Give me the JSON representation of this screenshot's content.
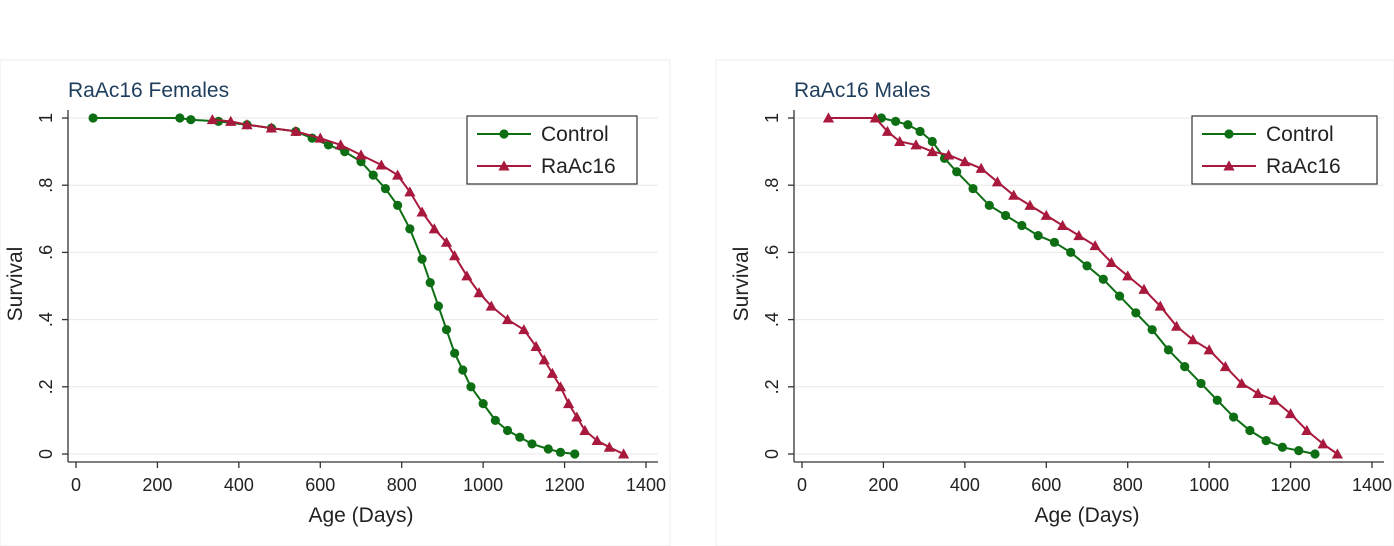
{
  "colors": {
    "control": "#0e6e14",
    "raac16": "#a8193d"
  },
  "chart_data": [
    {
      "type": "line",
      "title": "RaAc16 Females",
      "xlabel": "Age (Days)",
      "ylabel": "Survival",
      "xlim": [
        0,
        1400
      ],
      "ylim": [
        0,
        1
      ],
      "xticks": [
        0,
        200,
        400,
        600,
        800,
        1000,
        1200,
        1400
      ],
      "yticks": [
        0,
        0.2,
        0.4,
        0.6,
        0.8,
        1
      ],
      "ytick_labels": [
        "0",
        ".2",
        ".4",
        ".6",
        ".8",
        "1"
      ],
      "grid": true,
      "legend_position": "top-right",
      "series": [
        {
          "name": "Control",
          "marker": "circle",
          "x": [
            42,
            255,
            282,
            350,
            420,
            480,
            540,
            580,
            620,
            660,
            700,
            730,
            760,
            790,
            820,
            850,
            870,
            890,
            910,
            930,
            950,
            970,
            1000,
            1030,
            1060,
            1090,
            1120,
            1160,
            1190,
            1225
          ],
          "y": [
            1.0,
            1.0,
            0.995,
            0.99,
            0.98,
            0.97,
            0.96,
            0.94,
            0.92,
            0.9,
            0.87,
            0.83,
            0.79,
            0.74,
            0.67,
            0.58,
            0.51,
            0.44,
            0.37,
            0.3,
            0.25,
            0.2,
            0.15,
            0.1,
            0.07,
            0.05,
            0.03,
            0.015,
            0.005,
            0.0
          ]
        },
        {
          "name": "RaAc16",
          "marker": "triangle",
          "x": [
            335,
            380,
            420,
            480,
            540,
            600,
            650,
            700,
            750,
            790,
            820,
            850,
            880,
            910,
            930,
            960,
            990,
            1020,
            1060,
            1100,
            1130,
            1150,
            1170,
            1190,
            1210,
            1230,
            1250,
            1280,
            1310,
            1345
          ],
          "y": [
            0.995,
            0.99,
            0.98,
            0.97,
            0.96,
            0.94,
            0.92,
            0.89,
            0.86,
            0.83,
            0.78,
            0.72,
            0.67,
            0.63,
            0.59,
            0.53,
            0.48,
            0.44,
            0.4,
            0.37,
            0.32,
            0.28,
            0.24,
            0.2,
            0.15,
            0.11,
            0.07,
            0.04,
            0.02,
            0.0
          ]
        }
      ]
    },
    {
      "type": "line",
      "title": "RaAc16 Males",
      "xlabel": "Age (Days)",
      "ylabel": "Survival",
      "xlim": [
        0,
        1400
      ],
      "ylim": [
        0,
        1
      ],
      "xticks": [
        0,
        200,
        400,
        600,
        800,
        1000,
        1200,
        1400
      ],
      "yticks": [
        0,
        0.2,
        0.4,
        0.6,
        0.8,
        1
      ],
      "ytick_labels": [
        "0",
        ".2",
        ".4",
        ".6",
        ".8",
        "1"
      ],
      "grid": true,
      "legend_position": "top-right",
      "series": [
        {
          "name": "Control",
          "marker": "circle",
          "x": [
            195,
            230,
            260,
            290,
            320,
            350,
            380,
            420,
            460,
            500,
            540,
            580,
            620,
            660,
            700,
            740,
            780,
            820,
            860,
            900,
            940,
            980,
            1020,
            1060,
            1100,
            1140,
            1180,
            1220,
            1260
          ],
          "y": [
            1.0,
            0.99,
            0.98,
            0.96,
            0.93,
            0.88,
            0.84,
            0.79,
            0.74,
            0.71,
            0.68,
            0.65,
            0.63,
            0.6,
            0.56,
            0.52,
            0.47,
            0.42,
            0.37,
            0.31,
            0.26,
            0.21,
            0.16,
            0.11,
            0.07,
            0.04,
            0.02,
            0.01,
            0.0
          ]
        },
        {
          "name": "RaAc16",
          "marker": "triangle",
          "x": [
            65,
            180,
            210,
            240,
            280,
            320,
            360,
            400,
            440,
            480,
            520,
            560,
            600,
            640,
            680,
            720,
            760,
            800,
            840,
            880,
            920,
            960,
            1000,
            1040,
            1080,
            1120,
            1160,
            1200,
            1240,
            1280,
            1315
          ],
          "y": [
            1.0,
            1.0,
            0.96,
            0.93,
            0.92,
            0.9,
            0.89,
            0.87,
            0.85,
            0.81,
            0.77,
            0.74,
            0.71,
            0.68,
            0.65,
            0.62,
            0.57,
            0.53,
            0.49,
            0.44,
            0.38,
            0.34,
            0.31,
            0.26,
            0.21,
            0.18,
            0.16,
            0.12,
            0.07,
            0.03,
            0.0
          ]
        }
      ]
    }
  ]
}
